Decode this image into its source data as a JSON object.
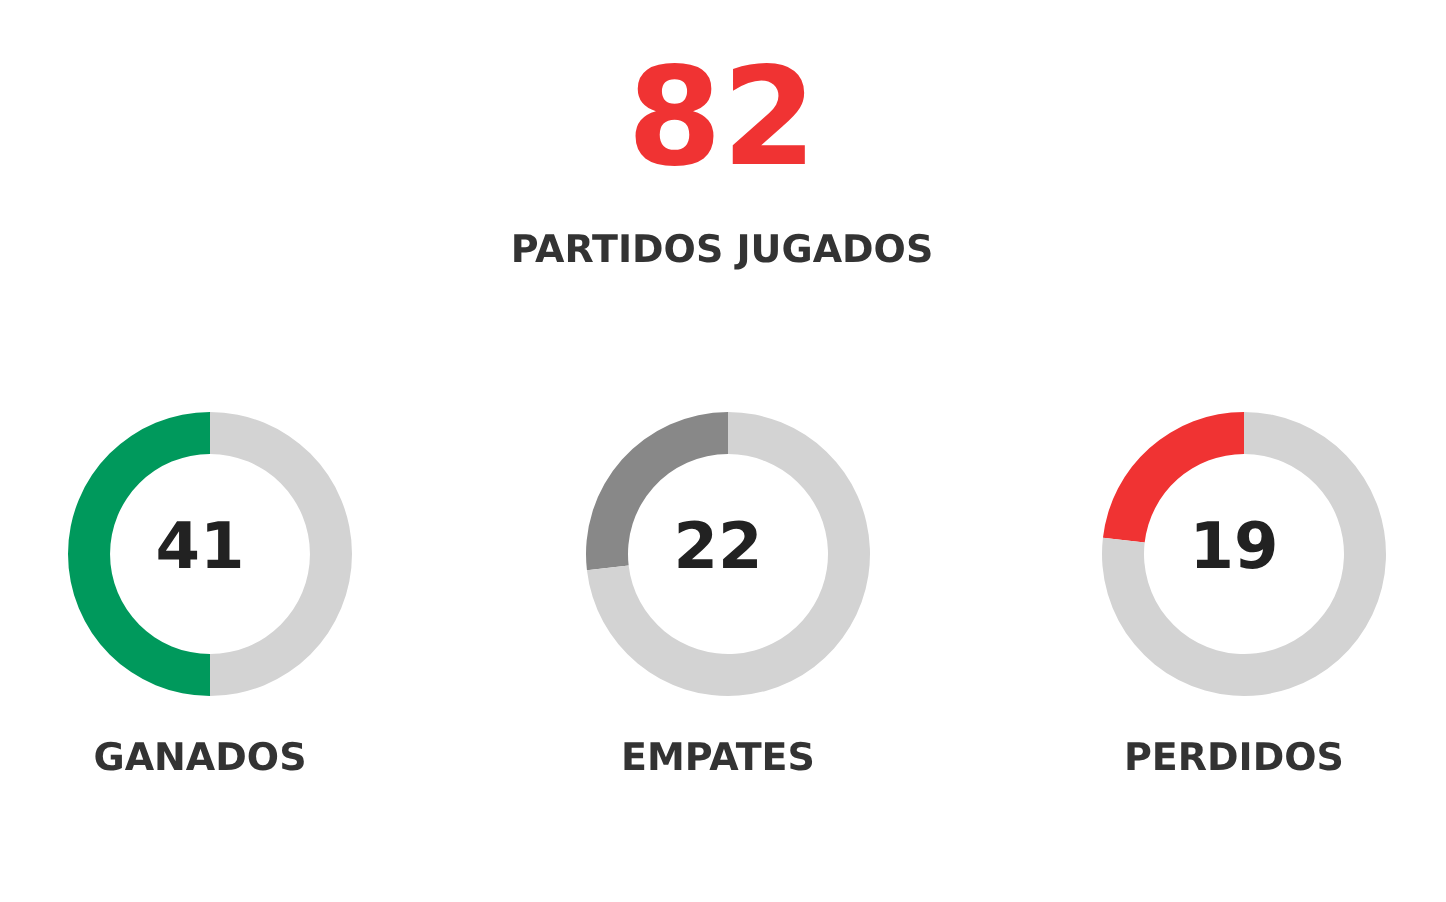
{
  "chart_data": [
    {
      "type": "other",
      "title": "82",
      "subtitle": "PARTIDOS JUGADOS"
    },
    {
      "type": "donut",
      "xlabel": "GANADOS",
      "categories": [
        null,
        null
      ],
      "values": [
        41,
        41
      ],
      "colors": [
        "#00995c",
        "#d3d3d3"
      ],
      "value_labels": [
        "41",
        null
      ]
    },
    {
      "type": "donut",
      "xlabel": "EMPATES",
      "categories": [
        null,
        null
      ],
      "values": [
        22,
        60
      ],
      "colors": [
        "#888888",
        "#d3d3d3"
      ],
      "value_labels": [
        "22",
        null
      ]
    },
    {
      "type": "donut",
      "xlabel": "PERDIDOS",
      "categories": [
        null,
        null
      ],
      "values": [
        19,
        63
      ],
      "colors": [
        "#f03333",
        "#d3d3d3"
      ],
      "value_labels": [
        "19",
        null
      ]
    }
  ]
}
